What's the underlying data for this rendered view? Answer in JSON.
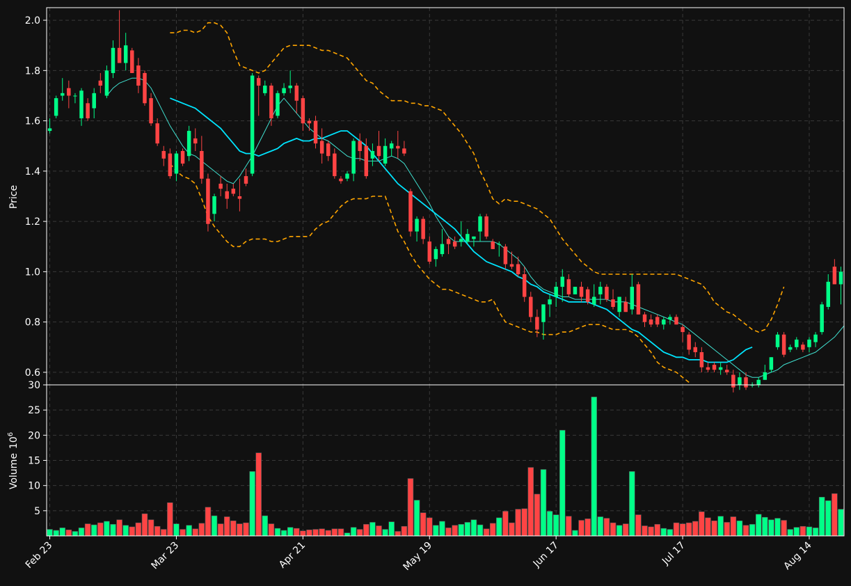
{
  "chart_data": {
    "type": "candlestick",
    "theme": {
      "background": "#111111",
      "up_color": "#00ff88",
      "down_color": "#ff4444",
      "grid": "dashed",
      "ma_fast_color": "#40e0d0",
      "ma_slow_color": "#00e5ff",
      "band_color": "#ffa500"
    },
    "price_panel": {
      "ylabel": "Price",
      "ylim": [
        0.55,
        2.05
      ],
      "yticks": [
        0.6,
        0.8,
        1.0,
        1.2,
        1.4,
        1.6,
        1.8,
        2.0
      ],
      "ytick_labels": [
        "0.6",
        "0.8",
        "1.0",
        "1.2",
        "1.4",
        "1.6",
        "1.8",
        "2.0"
      ]
    },
    "volume_panel": {
      "ylabel": "Volume",
      "ylabel_exponent": "10",
      "ylabel_exponent_power": "6",
      "ylim": [
        0,
        30
      ],
      "yticks": [
        5,
        10,
        15,
        20,
        25,
        30
      ],
      "ytick_labels": [
        "5",
        "10",
        "15",
        "20",
        "25",
        "30"
      ]
    },
    "x_ticks": [
      {
        "label": "Feb 23",
        "index": 0
      },
      {
        "label": "Mar 23",
        "index": 20
      },
      {
        "label": "Apr 21",
        "index": 40
      },
      {
        "label": "May 19",
        "index": 60
      },
      {
        "label": "Jun 17",
        "index": 80
      },
      {
        "label": "Jul 17",
        "index": 100
      },
      {
        "label": "Aug 14",
        "index": 120
      }
    ],
    "candles": [
      [
        1.56,
        1.61,
        1.55,
        1.57,
        1.3
      ],
      [
        1.62,
        1.7,
        1.61,
        1.69,
        1.1
      ],
      [
        1.7,
        1.77,
        1.68,
        1.71,
        1.6
      ],
      [
        1.73,
        1.76,
        1.65,
        1.7,
        1.2
      ],
      [
        1.7,
        1.71,
        1.67,
        1.7,
        0.9
      ],
      [
        1.61,
        1.73,
        1.58,
        1.72,
        1.6
      ],
      [
        1.67,
        1.69,
        1.6,
        1.61,
        2.4
      ],
      [
        1.65,
        1.73,
        1.61,
        1.71,
        2.2
      ],
      [
        1.76,
        1.79,
        1.71,
        1.74,
        2.6
      ],
      [
        1.7,
        1.82,
        1.69,
        1.8,
        2.9
      ],
      [
        1.79,
        1.92,
        1.77,
        1.89,
        2.3
      ],
      [
        1.89,
        2.04,
        1.83,
        1.83,
        3.2
      ],
      [
        1.83,
        1.95,
        1.8,
        1.9,
        2.1
      ],
      [
        1.88,
        1.89,
        1.79,
        1.79,
        1.8
      ],
      [
        1.82,
        1.85,
        1.71,
        1.74,
        2.6
      ],
      [
        1.79,
        1.8,
        1.66,
        1.67,
        4.4
      ],
      [
        1.69,
        1.71,
        1.58,
        1.59,
        3.2
      ],
      [
        1.59,
        1.61,
        1.5,
        1.51,
        1.9
      ],
      [
        1.48,
        1.5,
        1.42,
        1.45,
        1.3
      ],
      [
        1.47,
        1.49,
        1.37,
        1.38,
        6.6
      ],
      [
        1.39,
        1.48,
        1.36,
        1.47,
        2.4
      ],
      [
        1.48,
        1.49,
        1.42,
        1.43,
        1.3
      ],
      [
        1.46,
        1.58,
        1.44,
        1.56,
        2.1
      ],
      [
        1.53,
        1.57,
        1.48,
        1.51,
        1.4
      ],
      [
        1.48,
        1.54,
        1.35,
        1.37,
        2.5
      ],
      [
        1.37,
        1.39,
        1.16,
        1.19,
        5.7
      ],
      [
        1.23,
        1.31,
        1.2,
        1.3,
        4.0
      ],
      [
        1.35,
        1.38,
        1.3,
        1.33,
        2.4
      ],
      [
        1.32,
        1.35,
        1.25,
        1.29,
        3.8
      ],
      [
        1.33,
        1.35,
        1.3,
        1.31,
        3.0
      ],
      [
        1.3,
        1.37,
        1.24,
        1.29,
        2.4
      ],
      [
        1.38,
        1.41,
        1.34,
        1.35,
        2.6
      ],
      [
        1.39,
        1.79,
        1.38,
        1.78,
        12.8
      ],
      [
        1.77,
        1.78,
        1.62,
        1.74,
        16.5
      ],
      [
        1.71,
        1.76,
        1.7,
        1.74,
        4.0
      ],
      [
        1.74,
        1.75,
        1.58,
        1.61,
        2.4
      ],
      [
        1.62,
        1.72,
        1.61,
        1.71,
        1.5
      ],
      [
        1.71,
        1.75,
        1.7,
        1.73,
        1.1
      ],
      [
        1.73,
        1.8,
        1.71,
        1.74,
        1.7
      ],
      [
        1.74,
        1.75,
        1.63,
        1.68,
        1.5
      ],
      [
        1.69,
        1.7,
        1.56,
        1.59,
        1.0
      ],
      [
        1.6,
        1.61,
        1.56,
        1.59,
        1.2
      ],
      [
        1.6,
        1.62,
        1.49,
        1.51,
        1.3
      ],
      [
        1.52,
        1.57,
        1.43,
        1.47,
        1.4
      ],
      [
        1.51,
        1.52,
        1.44,
        1.46,
        1.1
      ],
      [
        1.47,
        1.49,
        1.37,
        1.38,
        1.4
      ],
      [
        1.37,
        1.38,
        1.35,
        1.36,
        1.4
      ],
      [
        1.37,
        1.4,
        1.36,
        1.39,
        0.6
      ],
      [
        1.39,
        1.53,
        1.36,
        1.52,
        1.7
      ],
      [
        1.52,
        1.55,
        1.44,
        1.48,
        1.3
      ],
      [
        1.5,
        1.53,
        1.37,
        1.38,
        2.3
      ],
      [
        1.45,
        1.51,
        1.42,
        1.48,
        2.7
      ],
      [
        1.5,
        1.56,
        1.44,
        1.46,
        2.0
      ],
      [
        1.43,
        1.53,
        1.42,
        1.5,
        1.3
      ],
      [
        1.49,
        1.52,
        1.46,
        1.51,
        2.8
      ],
      [
        1.5,
        1.56,
        1.45,
        1.49,
        0.9
      ],
      [
        1.49,
        1.52,
        1.46,
        1.47,
        1.9
      ],
      [
        1.32,
        1.33,
        1.14,
        1.16,
        11.4
      ],
      [
        1.16,
        1.22,
        1.12,
        1.21,
        7.1
      ],
      [
        1.21,
        1.22,
        1.11,
        1.13,
        4.6
      ],
      [
        1.12,
        1.14,
        1.03,
        1.04,
        3.6
      ],
      [
        1.05,
        1.1,
        1.02,
        1.09,
        2.1
      ],
      [
        1.07,
        1.17,
        1.06,
        1.11,
        2.9
      ],
      [
        1.13,
        1.14,
        1.07,
        1.11,
        1.6
      ],
      [
        1.12,
        1.14,
        1.09,
        1.1,
        2.1
      ],
      [
        1.12,
        1.2,
        1.1,
        1.13,
        2.3
      ],
      [
        1.12,
        1.17,
        1.11,
        1.15,
        2.7
      ],
      [
        1.13,
        1.14,
        1.1,
        1.14,
        3.2
      ],
      [
        1.16,
        1.23,
        1.12,
        1.22,
        2.2
      ],
      [
        1.22,
        1.23,
        1.13,
        1.14,
        1.4
      ],
      [
        1.12,
        1.13,
        1.09,
        1.09,
        2.5
      ],
      [
        1.11,
        1.12,
        1.06,
        1.11,
        3.6
      ],
      [
        1.1,
        1.11,
        1.01,
        1.03,
        4.9
      ],
      [
        1.03,
        1.08,
        1.01,
        1.02,
        2.6
      ],
      [
        1.03,
        1.06,
        0.98,
        0.99,
        5.3
      ],
      [
        0.99,
        1.02,
        0.88,
        0.9,
        5.4
      ],
      [
        0.9,
        0.92,
        0.8,
        0.82,
        13.6
      ],
      [
        0.82,
        0.85,
        0.74,
        0.77,
        8.3
      ],
      [
        0.8,
        0.87,
        0.73,
        0.87,
        13.2
      ],
      [
        0.87,
        0.91,
        0.82,
        0.89,
        4.9
      ],
      [
        0.9,
        0.96,
        0.86,
        0.94,
        4.2
      ],
      [
        0.94,
        1.01,
        0.88,
        0.98,
        21.0
      ],
      [
        0.97,
        0.99,
        0.9,
        0.91,
        3.9
      ],
      [
        0.91,
        0.94,
        0.91,
        0.94,
        1.1
      ],
      [
        0.94,
        0.96,
        0.88,
        0.9,
        3.1
      ],
      [
        0.93,
        0.94,
        0.87,
        0.88,
        3.4
      ],
      [
        0.87,
        0.95,
        0.86,
        0.9,
        27.6
      ],
      [
        0.91,
        0.96,
        0.87,
        0.94,
        3.8
      ],
      [
        0.94,
        0.95,
        0.88,
        0.89,
        3.5
      ],
      [
        0.89,
        0.93,
        0.85,
        0.86,
        2.6
      ],
      [
        0.84,
        0.9,
        0.82,
        0.9,
        2.1
      ],
      [
        0.88,
        0.9,
        0.84,
        0.84,
        2.4
      ],
      [
        0.85,
        0.99,
        0.83,
        0.94,
        12.8
      ],
      [
        0.95,
        0.96,
        0.83,
        0.83,
        4.2
      ],
      [
        0.83,
        0.84,
        0.78,
        0.8,
        2.0
      ],
      [
        0.81,
        0.83,
        0.78,
        0.79,
        1.8
      ],
      [
        0.82,
        0.83,
        0.78,
        0.79,
        2.3
      ],
      [
        0.79,
        0.82,
        0.77,
        0.81,
        1.5
      ],
      [
        0.81,
        0.83,
        0.79,
        0.82,
        1.3
      ],
      [
        0.82,
        0.83,
        0.79,
        0.79,
        2.6
      ],
      [
        0.78,
        0.79,
        0.72,
        0.76,
        2.4
      ],
      [
        0.75,
        0.76,
        0.67,
        0.69,
        2.6
      ],
      [
        0.7,
        0.72,
        0.66,
        0.68,
        2.9
      ],
      [
        0.68,
        0.7,
        0.6,
        0.62,
        4.8
      ],
      [
        0.62,
        0.64,
        0.6,
        0.61,
        3.6
      ],
      [
        0.63,
        0.64,
        0.6,
        0.61,
        3.0
      ],
      [
        0.61,
        0.64,
        0.59,
        0.62,
        3.9
      ],
      [
        0.61,
        0.63,
        0.59,
        0.6,
        2.7
      ],
      [
        0.59,
        0.61,
        0.52,
        0.54,
        3.8
      ],
      [
        0.55,
        0.6,
        0.53,
        0.58,
        3.0
      ],
      [
        0.58,
        0.6,
        0.53,
        0.54,
        2.1
      ],
      [
        0.55,
        0.56,
        0.54,
        0.55,
        2.3
      ],
      [
        0.55,
        0.58,
        0.54,
        0.57,
        4.3
      ],
      [
        0.57,
        0.63,
        0.57,
        0.6,
        3.7
      ],
      [
        0.61,
        0.66,
        0.6,
        0.66,
        3.2
      ],
      [
        0.7,
        0.76,
        0.69,
        0.75,
        3.5
      ],
      [
        0.75,
        0.76,
        0.66,
        0.67,
        3.1
      ],
      [
        0.69,
        0.71,
        0.68,
        0.7,
        1.3
      ],
      [
        0.7,
        0.74,
        0.69,
        0.73,
        1.7
      ],
      [
        0.71,
        0.72,
        0.68,
        0.69,
        1.9
      ],
      [
        0.7,
        0.74,
        0.68,
        0.73,
        1.8
      ],
      [
        0.72,
        0.76,
        0.7,
        0.75,
        1.6
      ],
      [
        0.76,
        0.88,
        0.75,
        0.87,
        7.7
      ],
      [
        0.86,
        0.99,
        0.85,
        0.96,
        7.0
      ],
      [
        1.02,
        1.05,
        0.95,
        0.95,
        8.4
      ],
      [
        0.95,
        1.02,
        0.87,
        1.0,
        5.3
      ]
    ],
    "ma_fast": [
      null,
      null,
      null,
      null,
      null,
      null,
      null,
      null,
      null,
      1.7,
      1.73,
      1.75,
      1.76,
      1.77,
      1.77,
      1.76,
      1.73,
      1.68,
      1.63,
      1.58,
      1.54,
      1.5,
      1.47,
      1.46,
      1.44,
      1.42,
      1.4,
      1.38,
      1.36,
      1.35,
      1.38,
      1.42,
      1.46,
      1.51,
      1.56,
      1.61,
      1.66,
      1.69,
      1.66,
      1.63,
      1.6,
      1.57,
      1.55,
      1.53,
      1.52,
      1.5,
      1.48,
      1.46,
      1.45,
      1.45,
      1.44,
      1.44,
      1.44,
      1.45,
      1.46,
      1.45,
      1.43,
      1.39,
      1.35,
      1.31,
      1.27,
      1.22,
      1.18,
      1.14,
      1.12,
      1.12,
      1.12,
      1.12,
      1.12,
      1.12,
      1.12,
      1.11,
      1.09,
      1.07,
      1.05,
      1.02,
      0.98,
      0.95,
      0.93,
      0.92,
      0.91,
      0.9,
      0.9,
      0.89,
      0.89,
      0.89,
      0.89,
      0.89,
      0.89,
      0.88,
      0.88,
      0.88,
      0.87,
      0.86,
      0.85,
      0.84,
      0.83,
      0.82,
      0.81,
      0.8,
      0.79,
      0.77,
      0.75,
      0.73,
      0.71,
      0.69,
      0.67,
      0.65,
      0.63,
      0.61,
      0.59,
      0.58,
      0.58,
      0.59,
      0.6,
      0.61,
      0.63,
      0.64,
      0.65,
      0.66,
      0.67,
      0.68,
      0.7,
      0.72,
      0.74,
      0.77,
      0.8
    ],
    "ma_slow": [
      null,
      null,
      null,
      null,
      null,
      null,
      null,
      null,
      null,
      null,
      null,
      null,
      null,
      null,
      null,
      null,
      null,
      null,
      null,
      1.69,
      1.68,
      1.67,
      1.66,
      1.65,
      1.63,
      1.61,
      1.59,
      1.57,
      1.54,
      1.51,
      1.48,
      1.47,
      1.47,
      1.46,
      1.47,
      1.48,
      1.49,
      1.51,
      1.52,
      1.53,
      1.52,
      1.52,
      1.53,
      1.53,
      1.54,
      1.55,
      1.56,
      1.56,
      1.54,
      1.52,
      1.5,
      1.47,
      1.44,
      1.41,
      1.38,
      1.35,
      1.33,
      1.31,
      1.29,
      1.27,
      1.25,
      1.23,
      1.21,
      1.19,
      1.17,
      1.14,
      1.11,
      1.08,
      1.06,
      1.04,
      1.03,
      1.02,
      1.01,
      1.0,
      0.98,
      0.97,
      0.95,
      0.94,
      0.92,
      0.91,
      0.9,
      0.89,
      0.88,
      0.88,
      0.88,
      0.88,
      0.87,
      0.86,
      0.85,
      0.83,
      0.81,
      0.79,
      0.77,
      0.76,
      0.74,
      0.72,
      0.7,
      0.68,
      0.67,
      0.66,
      0.66,
      0.65,
      0.65,
      0.65,
      0.64,
      0.64,
      0.64,
      0.64,
      0.65,
      0.67,
      0.69,
      0.7
    ],
    "band_upper": [
      null,
      null,
      null,
      null,
      null,
      null,
      null,
      null,
      null,
      null,
      null,
      null,
      null,
      null,
      null,
      null,
      null,
      null,
      null,
      1.95,
      1.95,
      1.96,
      1.96,
      1.95,
      1.96,
      1.99,
      1.99,
      1.98,
      1.95,
      1.88,
      1.82,
      1.81,
      1.8,
      1.79,
      1.8,
      1.83,
      1.86,
      1.89,
      1.9,
      1.9,
      1.9,
      1.9,
      1.89,
      1.88,
      1.88,
      1.87,
      1.86,
      1.85,
      1.82,
      1.79,
      1.76,
      1.75,
      1.72,
      1.7,
      1.68,
      1.68,
      1.68,
      1.67,
      1.67,
      1.66,
      1.66,
      1.65,
      1.64,
      1.61,
      1.58,
      1.55,
      1.51,
      1.47,
      1.4,
      1.35,
      1.29,
      1.27,
      1.29,
      1.28,
      1.28,
      1.27,
      1.26,
      1.25,
      1.23,
      1.21,
      1.17,
      1.13,
      1.1,
      1.07,
      1.04,
      1.02,
      1.0,
      0.99,
      0.99,
      0.99,
      0.99,
      0.99,
      0.99,
      0.99,
      0.99,
      0.99,
      0.99,
      0.99,
      0.99,
      0.99,
      0.98,
      0.97,
      0.96,
      0.95,
      0.92,
      0.88,
      0.86,
      0.84,
      0.83,
      0.81,
      0.79,
      0.77,
      0.76,
      0.77,
      0.81,
      0.87,
      0.94
    ],
    "band_lower": [
      null,
      null,
      null,
      null,
      null,
      null,
      null,
      null,
      null,
      null,
      null,
      null,
      null,
      null,
      null,
      null,
      null,
      null,
      null,
      1.43,
      1.4,
      1.38,
      1.37,
      1.35,
      1.29,
      1.22,
      1.18,
      1.15,
      1.12,
      1.1,
      1.1,
      1.12,
      1.13,
      1.13,
      1.13,
      1.12,
      1.12,
      1.13,
      1.14,
      1.14,
      1.14,
      1.14,
      1.17,
      1.19,
      1.2,
      1.23,
      1.26,
      1.28,
      1.29,
      1.29,
      1.29,
      1.3,
      1.3,
      1.3,
      1.23,
      1.16,
      1.12,
      1.07,
      1.03,
      1.0,
      0.97,
      0.95,
      0.93,
      0.93,
      0.92,
      0.91,
      0.9,
      0.89,
      0.88,
      0.88,
      0.89,
      0.84,
      0.8,
      0.79,
      0.78,
      0.77,
      0.76,
      0.76,
      0.75,
      0.75,
      0.75,
      0.76,
      0.76,
      0.77,
      0.78,
      0.79,
      0.79,
      0.79,
      0.78,
      0.77,
      0.77,
      0.77,
      0.76,
      0.74,
      0.71,
      0.68,
      0.64,
      0.62,
      0.61,
      0.6,
      0.58,
      0.56
    ]
  }
}
